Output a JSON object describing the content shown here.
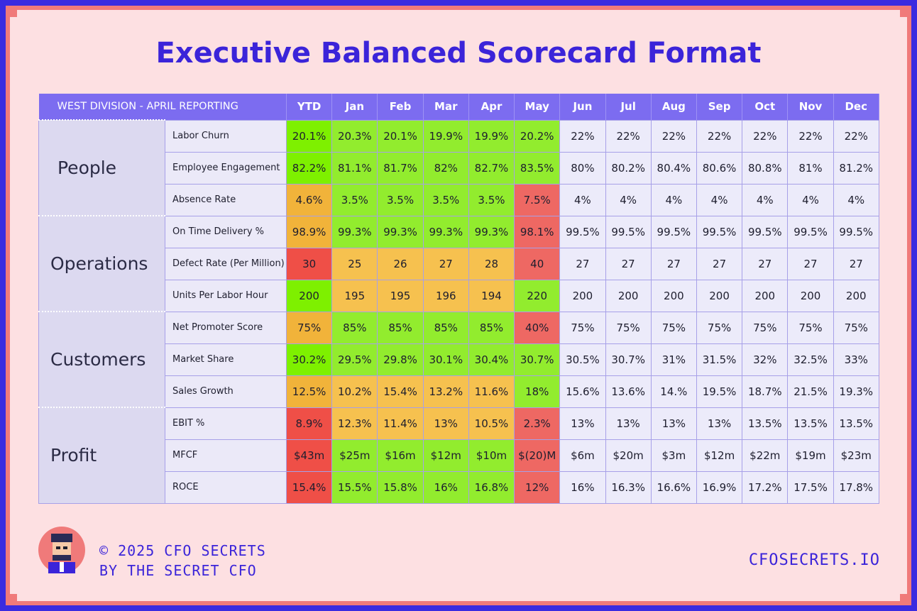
{
  "title": "Executive Balanced Scorecard Format",
  "division_label": "WEST DIVISION - APRIL REPORTING",
  "columns": [
    "YTD",
    "Jan",
    "Feb",
    "Mar",
    "Apr",
    "May",
    "Jun",
    "Jul",
    "Aug",
    "Sep",
    "Oct",
    "Nov",
    "Dec"
  ],
  "categories": [
    {
      "name": "People",
      "rows": [
        {
          "metric": "Labor Churn",
          "values": [
            "20.1%",
            "20.3%",
            "20.1%",
            "19.9%",
            "19.9%",
            "20.2%",
            "22%",
            "22%",
            "22%",
            "22%",
            "22%",
            "22%",
            "22%"
          ],
          "colors": [
            "g",
            "lg",
            "lg",
            "lg",
            "lg",
            "lg",
            "f",
            "f",
            "f",
            "f",
            "f",
            "f",
            "f"
          ]
        },
        {
          "metric": "Employee Engagement",
          "values": [
            "82.2%",
            "81.1%",
            "81.7%",
            "82%",
            "82.7%",
            "83.5%",
            "80%",
            "80.2%",
            "80.4%",
            "80.6%",
            "80.8%",
            "81%",
            "81.2%"
          ],
          "colors": [
            "g",
            "lg",
            "lg",
            "lg",
            "lg",
            "lg",
            "f",
            "f",
            "f",
            "f",
            "f",
            "f",
            "f"
          ]
        },
        {
          "metric": "Absence Rate",
          "values": [
            "4.6%",
            "3.5%",
            "3.5%",
            "3.5%",
            "3.5%",
            "7.5%",
            "4%",
            "4%",
            "4%",
            "4%",
            "4%",
            "4%",
            "4%"
          ],
          "colors": [
            "ob",
            "lg",
            "lg",
            "lg",
            "lg",
            "rl",
            "f",
            "f",
            "f",
            "f",
            "f",
            "f",
            "f"
          ]
        }
      ]
    },
    {
      "name": "Operations",
      "rows": [
        {
          "metric": "On Time Delivery %",
          "values": [
            "98.9%",
            "99.3%",
            "99.3%",
            "99.3%",
            "99.3%",
            "98.1%",
            "99.5%",
            "99.5%",
            "99.5%",
            "99.5%",
            "99.5%",
            "99.5%",
            "99.5%"
          ],
          "colors": [
            "ob",
            "lg",
            "lg",
            "lg",
            "lg",
            "rl",
            "f",
            "f",
            "f",
            "f",
            "f",
            "f",
            "f"
          ]
        },
        {
          "metric": "Defect Rate (Per Million)",
          "values": [
            "30",
            "25",
            "26",
            "27",
            "28",
            "40",
            "27",
            "27",
            "27",
            "27",
            "27",
            "27",
            "27"
          ],
          "colors": [
            "r",
            "o",
            "o",
            "o",
            "o",
            "rl",
            "f",
            "f",
            "f",
            "f",
            "f",
            "f",
            "f"
          ]
        },
        {
          "metric": "Units Per Labor Hour",
          "values": [
            "200",
            "195",
            "195",
            "196",
            "194",
            "220",
            "200",
            "200",
            "200",
            "200",
            "200",
            "200",
            "200"
          ],
          "colors": [
            "g",
            "o",
            "o",
            "o",
            "o",
            "lg",
            "f",
            "f",
            "f",
            "f",
            "f",
            "f",
            "f"
          ]
        }
      ]
    },
    {
      "name": "Customers",
      "rows": [
        {
          "metric": "Net Promoter Score",
          "values": [
            "75%",
            "85%",
            "85%",
            "85%",
            "85%",
            "40%",
            "75%",
            "75%",
            "75%",
            "75%",
            "75%",
            "75%",
            "75%"
          ],
          "colors": [
            "ob",
            "lg",
            "lg",
            "lg",
            "lg",
            "rl",
            "f",
            "f",
            "f",
            "f",
            "f",
            "f",
            "f"
          ]
        },
        {
          "metric": "Market Share",
          "values": [
            "30.2%",
            "29.5%",
            "29.8%",
            "30.1%",
            "30.4%",
            "30.7%",
            "30.5%",
            "30.7%",
            "31%",
            "31.5%",
            "32%",
            "32.5%",
            "33%"
          ],
          "colors": [
            "g",
            "lg",
            "lg",
            "lg",
            "lg",
            "lg",
            "f",
            "f",
            "f",
            "f",
            "f",
            "f",
            "f"
          ]
        },
        {
          "metric": "Sales Growth",
          "values": [
            "12.5%",
            "10.2%",
            "15.4%",
            "13.2%",
            "11.6%",
            "18%",
            "15.6%",
            "13.6%",
            "14.%",
            "19.5%",
            "18.7%",
            "21.5%",
            "19.3%"
          ],
          "colors": [
            "ob",
            "o",
            "o",
            "o",
            "o",
            "lg",
            "f",
            "f",
            "f",
            "f",
            "f",
            "f",
            "f"
          ]
        }
      ]
    },
    {
      "name": "Profit",
      "rows": [
        {
          "metric": "EBIT %",
          "values": [
            "8.9%",
            "12.3%",
            "11.4%",
            "13%",
            "10.5%",
            "2.3%",
            "13%",
            "13%",
            "13%",
            "13%",
            "13.5%",
            "13.5%",
            "13.5%"
          ],
          "colors": [
            "r",
            "o",
            "o",
            "o",
            "o",
            "rl",
            "f",
            "f",
            "f",
            "f",
            "f",
            "f",
            "f"
          ]
        },
        {
          "metric": "MFCF",
          "values": [
            "$43m",
            "$25m",
            "$16m",
            "$12m",
            "$10m",
            "$(20)M",
            "$6m",
            "$20m",
            "$3m",
            "$12m",
            "$22m",
            "$19m",
            "$23m"
          ],
          "colors": [
            "r",
            "lg",
            "lg",
            "lg",
            "lg",
            "rl",
            "f",
            "f",
            "f",
            "f",
            "f",
            "f",
            "f"
          ]
        },
        {
          "metric": "ROCE",
          "values": [
            "15.4%",
            "15.5%",
            "15.8%",
            "16%",
            "16.8%",
            "12%",
            "16%",
            "16.3%",
            "16.6%",
            "16.9%",
            "17.2%",
            "17.5%",
            "17.8%"
          ],
          "colors": [
            "r",
            "lg",
            "lg",
            "lg",
            "lg",
            "rl",
            "f",
            "f",
            "f",
            "f",
            "f",
            "f",
            "f"
          ]
        }
      ]
    }
  ],
  "footer": {
    "copyright": "© 2025 CFO SECRETS",
    "byline": "BY THE SECRET CFO",
    "website": "CFOSECRETS.IO"
  }
}
